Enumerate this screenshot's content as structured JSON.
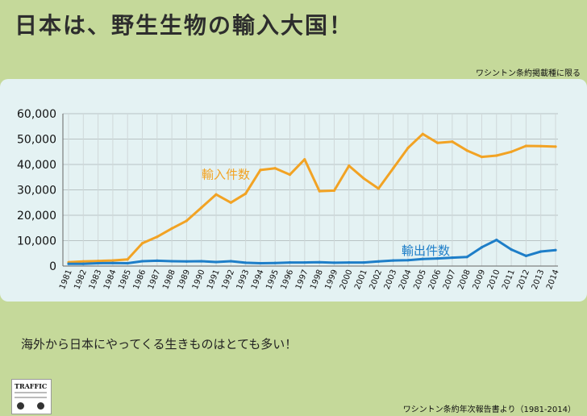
{
  "title": "日本は、野生生物の輸入大国！",
  "note": "ワシントン条約掲載種に限る",
  "caption": "海外から日本にやってくる生きものはとても多い！",
  "source": "ワシントン条約年次報告書より（1981-2014）",
  "logo": {
    "text": "TRAFFIC"
  },
  "colors": {
    "background": "#c5d99a",
    "panel": "#e4f2f3",
    "import": "#f2a324",
    "export": "#1e7ec8"
  },
  "chart_data": {
    "type": "line",
    "ylim": [
      0,
      60000
    ],
    "yticks": [
      0,
      10000,
      20000,
      30000,
      40000,
      50000,
      60000
    ],
    "ytick_labels": [
      "0",
      "10,000",
      "20,000",
      "30,000",
      "40,000",
      "50,000",
      "60,000"
    ],
    "x": [
      "1981",
      "1982",
      "1983",
      "1984",
      "1985",
      "1986",
      "1987",
      "1988",
      "1989",
      "1990",
      "1991",
      "1992",
      "1993",
      "1994",
      "1995",
      "1996",
      "1997",
      "1998",
      "1999",
      "2000",
      "2001",
      "2002",
      "2003",
      "2004",
      "2005",
      "2006",
      "2007",
      "2008",
      "2009",
      "2010",
      "2011",
      "2012",
      "2013",
      "2014"
    ],
    "grid": true,
    "series": [
      {
        "name": "輸入件数",
        "color": "#f2a324",
        "values": [
          1500,
          1800,
          2000,
          2200,
          2600,
          9000,
          11500,
          14800,
          17800,
          23000,
          28200,
          25000,
          28500,
          37800,
          38500,
          36000,
          42000,
          29500,
          29700,
          39500,
          34500,
          30500,
          38500,
          46500,
          52000,
          48500,
          49000,
          45500,
          43000,
          43500,
          45000,
          47300,
          47200,
          47000
        ]
      },
      {
        "name": "輸出件数",
        "color": "#1e7ec8",
        "values": [
          900,
          900,
          1100,
          1200,
          1100,
          1900,
          2100,
          1900,
          1800,
          1900,
          1600,
          1900,
          1300,
          1100,
          1200,
          1400,
          1400,
          1500,
          1300,
          1400,
          1400,
          1800,
          2200,
          2300,
          2800,
          3000,
          3300,
          3600,
          7400,
          10300,
          6500,
          4000,
          5700,
          6300
        ]
      }
    ]
  }
}
